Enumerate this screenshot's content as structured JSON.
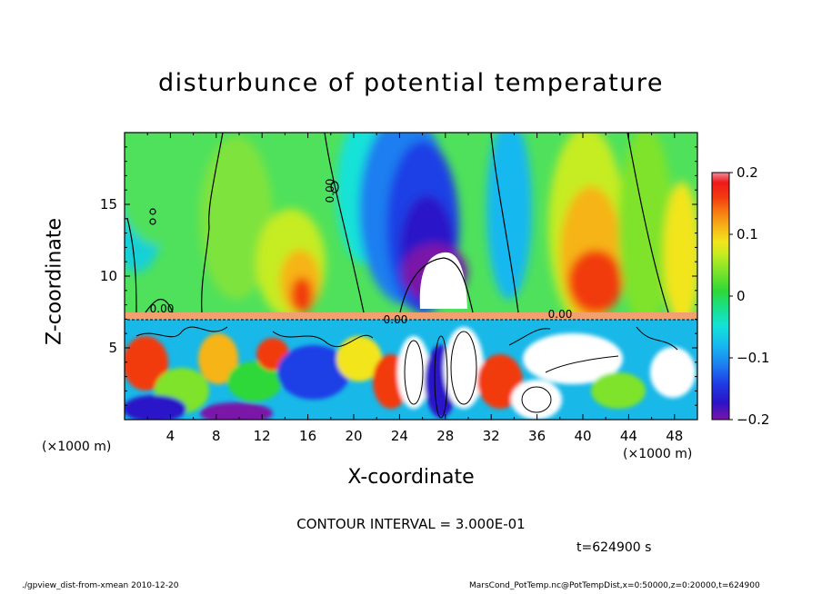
{
  "chart_data": {
    "type": "heatmap",
    "title": "disturbunce of potential temperature",
    "xlabel": "X-coordinate",
    "ylabel": "Z-coordinate",
    "x_unit_label": "(×1000 m)",
    "x_ticks": [
      4,
      8,
      12,
      16,
      20,
      24,
      28,
      32,
      36,
      40,
      44,
      48
    ],
    "y_ticks": [
      5,
      10,
      15
    ],
    "xlim": [
      0,
      50
    ],
    "ylim": [
      0,
      20
    ],
    "colorbar": {
      "ticks": [
        "0.2",
        "0.1",
        "0",
        "−0.1",
        "−0.2"
      ],
      "tick_values": [
        0.2,
        0.1,
        0,
        -0.1,
        -0.2
      ],
      "range": [
        -0.2,
        0.2
      ]
    },
    "contour_labels": [
      "0.00"
    ],
    "contour_interval": "CONTOUR INTERVAL = 3.000E-01",
    "time_label": "t=624900 s",
    "footer_left": "./gpview_dist-from-xmean   2010-12-20",
    "footer_right": "MarsCond_PotTemp.nc@PotTempDist,x=0:50000,z=0:20000,t=624900",
    "colors": {
      "palette": [
        "#7a15a8",
        "#2b14c8",
        "#1f3fe6",
        "#1e7ef0",
        "#17b8f0",
        "#14e2d8",
        "#18e08c",
        "#2ed838",
        "#7ee32a",
        "#c6ec20",
        "#f2e51c",
        "#f6b418",
        "#f77c12",
        "#f23a10",
        "#ee1a1a",
        "#f28a9a"
      ]
    }
  }
}
